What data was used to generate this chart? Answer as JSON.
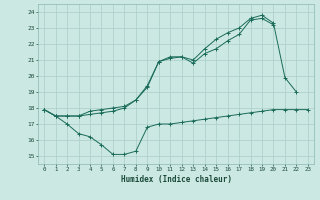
{
  "xlabel": "Humidex (Indice chaleur)",
  "xlim": [
    -0.5,
    23.5
  ],
  "ylim": [
    14.5,
    24.5
  ],
  "yticks": [
    15,
    16,
    17,
    18,
    19,
    20,
    21,
    22,
    23,
    24
  ],
  "xticks": [
    0,
    1,
    2,
    3,
    4,
    5,
    6,
    7,
    8,
    9,
    10,
    11,
    12,
    13,
    14,
    15,
    16,
    17,
    18,
    19,
    20,
    21,
    22,
    23
  ],
  "bg_color": "#cce8e2",
  "grid_color": "#aacec8",
  "line_color": "#1a6b5a",
  "line1_x": [
    0,
    1,
    2,
    3,
    4,
    5,
    6,
    7,
    8,
    9,
    10,
    11,
    12,
    13,
    14,
    15,
    16,
    17,
    18,
    19,
    20,
    21,
    22,
    23
  ],
  "line1_y": [
    17.9,
    17.5,
    17.0,
    16.4,
    16.2,
    15.7,
    15.1,
    15.1,
    15.3,
    16.8,
    17.0,
    17.0,
    17.1,
    17.2,
    17.3,
    17.4,
    17.5,
    17.6,
    17.7,
    17.8,
    17.9,
    17.9,
    17.9,
    17.9
  ],
  "line2_x": [
    0,
    1,
    2,
    3,
    4,
    5,
    6,
    7,
    8,
    9,
    10,
    11,
    12,
    13,
    14,
    15,
    16,
    17,
    18,
    19,
    20
  ],
  "line2_y": [
    17.9,
    17.5,
    17.5,
    17.5,
    17.6,
    17.7,
    17.8,
    18.0,
    18.5,
    19.3,
    20.9,
    21.1,
    21.2,
    20.8,
    21.4,
    21.7,
    22.2,
    22.6,
    23.5,
    23.6,
    23.2
  ],
  "line3_x": [
    0,
    1,
    2,
    3,
    4,
    5,
    6,
    7,
    8,
    9,
    10,
    11,
    12,
    13,
    14,
    15,
    16,
    17,
    18,
    19,
    20,
    21,
    22
  ],
  "line3_y": [
    17.9,
    17.5,
    17.5,
    17.5,
    17.8,
    17.9,
    18.0,
    18.1,
    18.5,
    19.4,
    20.9,
    21.2,
    21.2,
    21.0,
    21.7,
    22.3,
    22.7,
    23.0,
    23.6,
    23.8,
    23.3,
    19.9,
    19.0
  ]
}
